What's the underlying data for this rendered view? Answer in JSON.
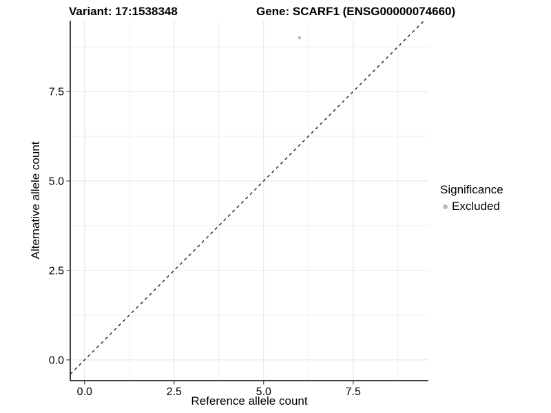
{
  "chart_data": {
    "type": "scatter",
    "titles": {
      "variant": "Variant: 17:1538348",
      "gene": "Gene: SCARF1 (ENSG00000074660)"
    },
    "xlabel": "Reference allele count",
    "ylabel": "Alternative allele count",
    "xlim": [
      -0.4,
      9.6
    ],
    "ylim": [
      -0.58,
      9.48
    ],
    "x_ticks": {
      "values": [
        0,
        2.5,
        5,
        7.5
      ],
      "labels": [
        "0.0",
        "2.5",
        "5.0",
        "7.5"
      ],
      "minor": [
        1.25,
        3.75,
        6.25,
        8.75
      ]
    },
    "y_ticks": {
      "values": [
        0,
        2.5,
        5,
        7.5
      ],
      "labels": [
        "0.0",
        "2.5",
        "5.0",
        "7.5"
      ],
      "minor": [
        1.25,
        3.75,
        6.25,
        8.75
      ]
    },
    "grid": {
      "major": true,
      "minor": true
    },
    "identity_line": {
      "slope": 1,
      "intercept": 0,
      "linetype": "dashed",
      "color": "#000000"
    },
    "series": [
      {
        "name": "Excluded",
        "color": "#bebebe",
        "points": [
          {
            "x": 6,
            "y": 9
          }
        ]
      }
    ],
    "legend": {
      "title": "Significance",
      "position": "right",
      "entries": [
        {
          "label": "Excluded",
          "color": "#bebebe"
        }
      ]
    },
    "theme": {
      "background": "#ffffff",
      "grid_major_color": "#e6e6e6",
      "grid_minor_color": "#ededed",
      "axis_line_color": "#000000",
      "tick_color": "#333333",
      "text_color": "#000000",
      "tick_label_size": 16
    }
  }
}
